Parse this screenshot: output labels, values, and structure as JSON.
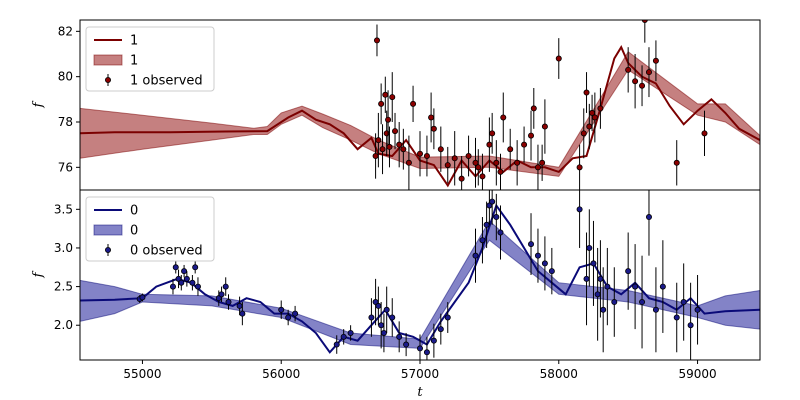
{
  "chart_data": [
    {
      "type": "line",
      "panel": "top",
      "ylabel": "f",
      "xlabel": "",
      "xlim": [
        54550,
        59450
      ],
      "ylim": [
        75.0,
        82.5
      ],
      "yticks": [
        76,
        78,
        80,
        82
      ],
      "xticks": [],
      "grid": false,
      "legend_placement": "top-left",
      "colors": {
        "line": "#7b0000",
        "band": "#b25656",
        "marker": "#8b0000"
      },
      "legend": [
        {
          "label": "1",
          "kind": "line"
        },
        {
          "label": "1",
          "kind": "band"
        },
        {
          "label": "1 observed",
          "kind": "errorbar"
        }
      ],
      "series": [
        {
          "label": "1",
          "x": [
            54550,
            54800,
            55200,
            55600,
            55900,
            56050,
            56150,
            56250,
            56350,
            56450,
            56550,
            56650,
            56700,
            56800,
            56900,
            57000,
            57100,
            57200,
            57300,
            57400,
            57500,
            57600,
            57700,
            57800,
            57900,
            58000,
            58100,
            58200,
            58300,
            58400,
            58450,
            58500,
            58600,
            58700,
            58800,
            58900,
            59000,
            59100,
            59200,
            59300,
            59450
          ],
          "y": [
            77.5,
            77.55,
            77.55,
            77.58,
            77.6,
            78.2,
            78.5,
            78.1,
            77.9,
            77.5,
            76.8,
            77.3,
            76.6,
            76.5,
            77.2,
            76.3,
            76.1,
            75.2,
            76.3,
            75.6,
            76.3,
            75.8,
            76.3,
            76.0,
            76.0,
            75.8,
            76.4,
            76.5,
            78.6,
            80.8,
            81.3,
            80.6,
            80.0,
            79.7,
            78.7,
            77.9,
            78.5,
            79.0,
            78.4,
            77.7,
            77.2
          ]
        }
      ],
      "band": {
        "x": [
          54550,
          55000,
          55500,
          55800,
          55900,
          56000,
          56150,
          56300,
          56500,
          56700,
          57000,
          57500,
          58000,
          58500,
          59000,
          59200,
          59450
        ],
        "lower": [
          76.4,
          76.8,
          77.2,
          77.45,
          77.45,
          77.9,
          78.3,
          77.75,
          77.2,
          76.6,
          75.95,
          76.0,
          75.6,
          80.3,
          78.3,
          78.0,
          77.0
        ],
        "upper": [
          78.6,
          78.3,
          77.95,
          77.72,
          77.8,
          78.4,
          78.7,
          78.35,
          77.85,
          77.2,
          76.45,
          76.5,
          76.0,
          81.1,
          78.8,
          78.8,
          77.4
        ]
      },
      "observations": {
        "x": [
          56680,
          56690,
          56700,
          56720,
          56730,
          56750,
          56760,
          56770,
          56780,
          56800,
          56820,
          56850,
          56880,
          56920,
          56950,
          57000,
          57050,
          57080,
          57100,
          57150,
          57200,
          57250,
          57300,
          57350,
          57400,
          57420,
          57450,
          57500,
          57520,
          57550,
          57580,
          57600,
          57650,
          57700,
          57750,
          57800,
          57820,
          57850,
          57880,
          57900,
          58000,
          58150,
          58180,
          58200,
          58220,
          58240,
          58260,
          58300,
          58500,
          58550,
          58600,
          58620,
          58650,
          58700,
          58850,
          59050
        ],
        "y": [
          76.5,
          81.6,
          77.2,
          78.8,
          76.8,
          79.2,
          77.5,
          78.1,
          76.9,
          79.1,
          77.6,
          77.0,
          76.8,
          76.2,
          78.8,
          76.6,
          76.5,
          78.2,
          77.7,
          76.8,
          76.1,
          76.4,
          75.5,
          76.5,
          76.2,
          76.0,
          75.6,
          77.0,
          77.5,
          76.2,
          75.8,
          78.2,
          76.8,
          76.2,
          77.0,
          77.4,
          78.6,
          76.0,
          76.2,
          77.8,
          80.8,
          76.0,
          77.5,
          79.3,
          77.8,
          78.4,
          78.2,
          78.6,
          80.3,
          79.8,
          79.6,
          82.5,
          80.2,
          80.7,
          76.2,
          77.5
        ],
        "err": [
          1.0,
          0.7,
          1.2,
          0.9,
          1.1,
          0.8,
          1.0,
          1.3,
          0.9,
          1.1,
          0.8,
          1.0,
          0.9,
          1.2,
          0.8,
          1.0,
          0.9,
          1.1,
          0.9,
          1.0,
          0.8,
          1.2,
          1.0,
          0.9,
          1.1,
          0.8,
          1.0,
          1.2,
          0.9,
          1.0,
          0.8,
          1.1,
          0.9,
          1.0,
          0.8,
          1.1,
          0.9,
          1.0,
          0.8,
          1.2,
          0.9,
          1.0,
          1.1,
          0.9,
          1.0,
          0.8,
          1.1,
          0.9,
          1.0,
          1.2,
          0.9,
          1.0,
          1.1,
          0.9,
          1.0,
          1.0
        ]
      }
    },
    {
      "type": "line",
      "panel": "bottom",
      "ylabel": "f",
      "xlabel": "t",
      "xlim": [
        54550,
        59450
      ],
      "ylim": [
        1.55,
        3.75
      ],
      "yticks": [
        2.0,
        2.5,
        3.0,
        3.5
      ],
      "yticklabels": [
        "2.0",
        "2.5",
        "3.0",
        "3.5"
      ],
      "xticks": [
        55000,
        56000,
        57000,
        58000,
        59000
      ],
      "grid": false,
      "legend_placement": "top-left",
      "colors": {
        "line": "#0a0a78",
        "band": "#5a5ab4",
        "marker": "#1a1a8a"
      },
      "legend": [
        {
          "label": "0",
          "kind": "line"
        },
        {
          "label": "0",
          "kind": "band"
        },
        {
          "label": "0 observed",
          "kind": "errorbar"
        }
      ],
      "series": [
        {
          "label": "0",
          "x": [
            54550,
            54800,
            55000,
            55100,
            55250,
            55350,
            55450,
            55550,
            55650,
            55750,
            55850,
            55950,
            56050,
            56150,
            56250,
            56350,
            56450,
            56550,
            56650,
            56750,
            56850,
            56950,
            57050,
            57150,
            57250,
            57350,
            57450,
            57550,
            57650,
            57750,
            57850,
            57950,
            58050,
            58150,
            58250,
            58350,
            58450,
            58550,
            58650,
            58750,
            58850,
            58950,
            59050,
            59200,
            59450
          ],
          "y": [
            2.32,
            2.33,
            2.35,
            2.5,
            2.6,
            2.55,
            2.4,
            2.3,
            2.25,
            2.35,
            2.3,
            2.15,
            2.15,
            2.05,
            1.9,
            1.65,
            1.85,
            1.8,
            2.0,
            2.2,
            1.9,
            1.85,
            1.75,
            2.05,
            2.3,
            2.55,
            3.0,
            3.55,
            3.3,
            3.0,
            2.7,
            2.55,
            2.4,
            2.75,
            2.8,
            2.5,
            2.4,
            2.55,
            2.35,
            2.3,
            2.2,
            2.35,
            2.15,
            2.18,
            2.2
          ]
        }
      ],
      "band": {
        "x": [
          54550,
          54800,
          55000,
          55500,
          56000,
          56500,
          57000,
          57500,
          58000,
          58500,
          59000,
          59200,
          59450
        ],
        "lower": [
          2.05,
          2.15,
          2.3,
          2.25,
          2.1,
          1.75,
          1.7,
          3.1,
          2.4,
          2.3,
          2.1,
          2.0,
          1.95
        ],
        "upper": [
          2.58,
          2.5,
          2.4,
          2.38,
          2.22,
          1.9,
          1.82,
          3.35,
          2.55,
          2.45,
          2.25,
          2.38,
          2.45
        ]
      },
      "observations": {
        "x": [
          54980,
          55000,
          55220,
          55240,
          55260,
          55280,
          55300,
          55320,
          55360,
          55380,
          55400,
          55550,
          55570,
          55600,
          55620,
          55700,
          55720,
          56000,
          56050,
          56100,
          56400,
          56450,
          56500,
          56650,
          56680,
          56700,
          56720,
          56740,
          56760,
          56800,
          56850,
          56900,
          57000,
          57050,
          57100,
          57150,
          57200,
          57400,
          57450,
          57480,
          57500,
          57520,
          57550,
          57580,
          57800,
          57850,
          57900,
          57950,
          58150,
          58200,
          58220,
          58250,
          58280,
          58300,
          58320,
          58350,
          58400,
          58500,
          58550,
          58600,
          58650,
          58700,
          58750,
          58850,
          58900,
          58950,
          59000
        ],
        "y": [
          2.34,
          2.36,
          2.5,
          2.75,
          2.6,
          2.55,
          2.7,
          2.6,
          2.55,
          2.75,
          2.5,
          2.35,
          2.4,
          2.5,
          2.3,
          2.25,
          2.15,
          2.2,
          2.1,
          2.15,
          1.75,
          1.85,
          1.9,
          2.1,
          2.3,
          2.25,
          2.0,
          1.9,
          2.2,
          2.1,
          1.85,
          1.75,
          1.7,
          1.65,
          1.8,
          1.95,
          2.1,
          2.9,
          3.1,
          3.3,
          3.55,
          3.6,
          3.4,
          3.2,
          3.05,
          2.9,
          2.8,
          2.7,
          3.5,
          2.6,
          3.0,
          2.8,
          2.4,
          2.6,
          2.2,
          2.5,
          2.3,
          2.7,
          2.5,
          2.3,
          3.4,
          2.2,
          2.5,
          2.1,
          2.3,
          2.0,
          2.2
        ],
        "err": [
          0.05,
          0.05,
          0.1,
          0.08,
          0.12,
          0.1,
          0.08,
          0.1,
          0.1,
          0.08,
          0.12,
          0.1,
          0.1,
          0.12,
          0.1,
          0.12,
          0.15,
          0.12,
          0.1,
          0.1,
          0.12,
          0.1,
          0.1,
          0.25,
          0.3,
          0.25,
          0.3,
          0.25,
          0.3,
          0.25,
          0.2,
          0.15,
          0.18,
          0.2,
          0.22,
          0.2,
          0.2,
          0.35,
          0.3,
          0.3,
          0.25,
          0.3,
          0.3,
          0.35,
          0.4,
          0.35,
          0.35,
          0.3,
          0.5,
          0.6,
          0.5,
          0.55,
          0.6,
          0.5,
          0.55,
          0.5,
          0.45,
          0.5,
          0.55,
          0.6,
          0.5,
          0.55,
          0.6,
          0.45,
          0.5,
          0.55,
          0.45
        ]
      }
    }
  ]
}
